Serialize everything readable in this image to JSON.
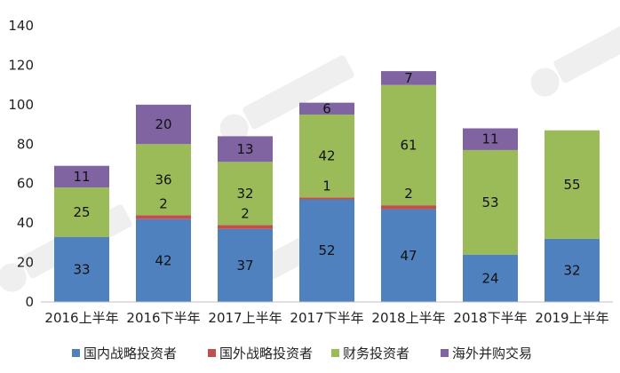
{
  "chart_data": {
    "type": "bar",
    "stacked": true,
    "categories": [
      "2016上半年",
      "2016下半年",
      "2017上半年",
      "2017下半年",
      "2018上半年",
      "2018下半年",
      "2019上半年"
    ],
    "series": [
      {
        "name": "国内战略投资者",
        "color": "#4e81bd",
        "values": [
          33,
          42,
          37,
          52,
          47,
          24,
          32
        ]
      },
      {
        "name": "国外战略投资者",
        "color": "#c0504d",
        "values": [
          0,
          2,
          2,
          1,
          2,
          0,
          0
        ]
      },
      {
        "name": "财务投资者",
        "color": "#9bbb59",
        "values": [
          25,
          36,
          32,
          42,
          61,
          53,
          55
        ]
      },
      {
        "name": "海外并购交易",
        "color": "#8064a2",
        "values": [
          11,
          20,
          13,
          6,
          7,
          11,
          0
        ]
      }
    ],
    "ylim": [
      0,
      140
    ],
    "yticks": [
      0,
      20,
      40,
      60,
      80,
      100,
      120,
      140
    ],
    "xlabel": "",
    "ylabel": "",
    "legend_position": "bottom",
    "grid": false
  }
}
